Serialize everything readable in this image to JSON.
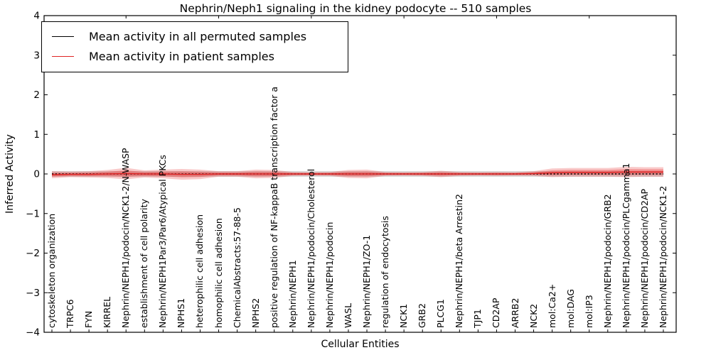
{
  "chart_data": {
    "type": "line",
    "title": "Nephrin/Neph1 signaling in the kidney podocyte -- 510 samples",
    "xlabel": "Cellular Entities",
    "ylabel": "Inferred Activity",
    "ylim": [
      -4,
      4
    ],
    "yticks": [
      4,
      3,
      2,
      1,
      0,
      -1,
      -2,
      -3,
      -4
    ],
    "grid": false,
    "legend_position": "upper left",
    "categories": [
      "cytoskeleton organization",
      "TRPC6",
      "FYN",
      "KIRREL",
      "Nephrin/NEPH1/podocin/NCK1-2/N-WASP",
      "establishment of cell polarity",
      "Nephrin/NEPH1Par3/Par6/Atypical PKCs",
      "NPHS1",
      "heterophilic cell adhesion",
      "homophilic cell adhesion",
      "ChemicalAbstracts:57-88-5",
      "NPHS2",
      "positive regulation of NF-kappaB transcription factor a",
      "Nephrin/NEPH1",
      "Nephrin/NEPH1/podocin/Cholesterol",
      "Nephrin/NEPH1/podocin",
      "WASL",
      "Nephrin/NEPH1/ZO-1",
      "regulation of endocytosis",
      "NCK1",
      "GRB2",
      "PLCG1",
      "Nephrin/NEPH1/beta Arrestin2",
      "TJP1",
      "CD2AP",
      "ARRB2",
      "NCK2",
      "mol:Ca2+",
      "mol:DAG",
      "mol:IP3",
      "Nephrin/NEPH1/podocin/GRB2",
      "Nephrin/NEPH1/podocin/PLCgamma1",
      "Nephrin/NEPH1/podocin/CD2AP",
      "Nephrin/NEPH1/podocin/NCK1-2"
    ],
    "series": [
      {
        "name": "Mean activity in all permuted samples",
        "color": "#000000",
        "line_style": "dashed",
        "band_color": "rgba(100,100,100,0.25)",
        "mean": [
          0,
          0,
          0,
          0,
          0,
          0,
          0,
          0,
          0,
          0,
          0,
          0,
          0,
          0,
          0,
          0,
          0,
          0,
          0,
          0,
          0,
          0,
          0,
          0,
          0,
          0,
          0,
          0,
          0,
          0,
          0,
          0,
          0,
          0
        ],
        "band_halfwidth": [
          0.07,
          0.07,
          0.07,
          0.07,
          0.07,
          0.07,
          0.07,
          0.07,
          0.07,
          0.07,
          0.07,
          0.07,
          0.07,
          0.07,
          0.07,
          0.07,
          0.07,
          0.07,
          0.07,
          0.07,
          0.07,
          0.07,
          0.07,
          0.07,
          0.07,
          0.07,
          0.07,
          0.07,
          0.07,
          0.07,
          0.07,
          0.07,
          0.07,
          0.07
        ]
      },
      {
        "name": "Mean activity in patient samples",
        "color": "#e02424",
        "line_style": "solid",
        "band_color": "rgba(230,40,40,0.25)",
        "inner_band_color": "rgba(230,40,40,0.35)",
        "inner_band_scale": 0.55,
        "mean": [
          -0.02,
          -0.01,
          -0.01,
          0,
          0.01,
          0,
          0,
          -0.01,
          -0.01,
          0,
          0,
          0,
          0,
          0,
          0,
          0,
          0,
          0,
          0,
          0,
          0,
          0,
          0,
          0,
          0,
          0,
          0.01,
          0.03,
          0.04,
          0.04,
          0.04,
          0.05,
          0.05,
          0.05
        ],
        "band_halfwidth": [
          0.09,
          0.07,
          0.08,
          0.1,
          0.145,
          0.09,
          0.11,
          0.135,
          0.12,
          0.07,
          0.07,
          0.11,
          0.1,
          0.05,
          0.045,
          0.05,
          0.1,
          0.11,
          0.05,
          0.045,
          0.05,
          0.08,
          0.05,
          0.045,
          0.05,
          0.045,
          0.06,
          0.11,
          0.11,
          0.11,
          0.11,
          0.13,
          0.12,
          0.12
        ]
      }
    ]
  }
}
